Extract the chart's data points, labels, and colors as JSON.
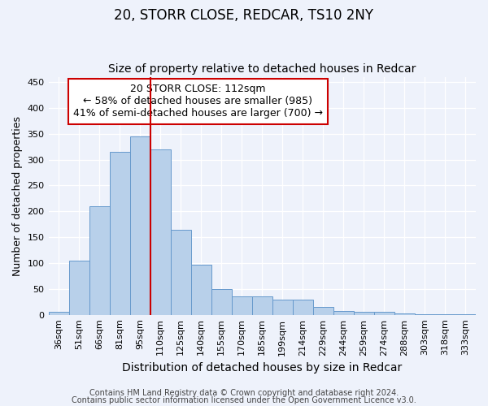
{
  "title1": "20, STORR CLOSE, REDCAR, TS10 2NY",
  "title2": "Size of property relative to detached houses in Redcar",
  "xlabel": "Distribution of detached houses by size in Redcar",
  "ylabel": "Number of detached properties",
  "categories": [
    "36sqm",
    "51sqm",
    "66sqm",
    "81sqm",
    "95sqm",
    "110sqm",
    "125sqm",
    "140sqm",
    "155sqm",
    "170sqm",
    "185sqm",
    "199sqm",
    "214sqm",
    "229sqm",
    "244sqm",
    "259sqm",
    "274sqm",
    "288sqm",
    "303sqm",
    "318sqm",
    "333sqm"
  ],
  "values": [
    6,
    105,
    210,
    315,
    344,
    320,
    165,
    97,
    50,
    35,
    35,
    29,
    30,
    15,
    8,
    5,
    5,
    2,
    1,
    1,
    1
  ],
  "bar_color": "#b8d0ea",
  "bar_edge_color": "#6699cc",
  "vline_bar_index": 5,
  "vline_color": "#cc0000",
  "annotation_line1": "20 STORR CLOSE: 112sqm",
  "annotation_line2": "← 58% of detached houses are smaller (985)",
  "annotation_line3": "41% of semi-detached houses are larger (700) →",
  "annotation_box_facecolor": "#ffffff",
  "annotation_box_edgecolor": "#cc0000",
  "ylim": [
    0,
    460
  ],
  "yticks": [
    0,
    50,
    100,
    150,
    200,
    250,
    300,
    350,
    400,
    450
  ],
  "background_color": "#eef2fb",
  "grid_color": "#ffffff",
  "footer1": "Contains HM Land Registry data © Crown copyright and database right 2024.",
  "footer2": "Contains public sector information licensed under the Open Government Licence v3.0.",
  "title1_fontsize": 12,
  "title2_fontsize": 10,
  "xlabel_fontsize": 10,
  "ylabel_fontsize": 9,
  "tick_fontsize": 8,
  "annotation_fontsize": 9,
  "footer_fontsize": 7
}
